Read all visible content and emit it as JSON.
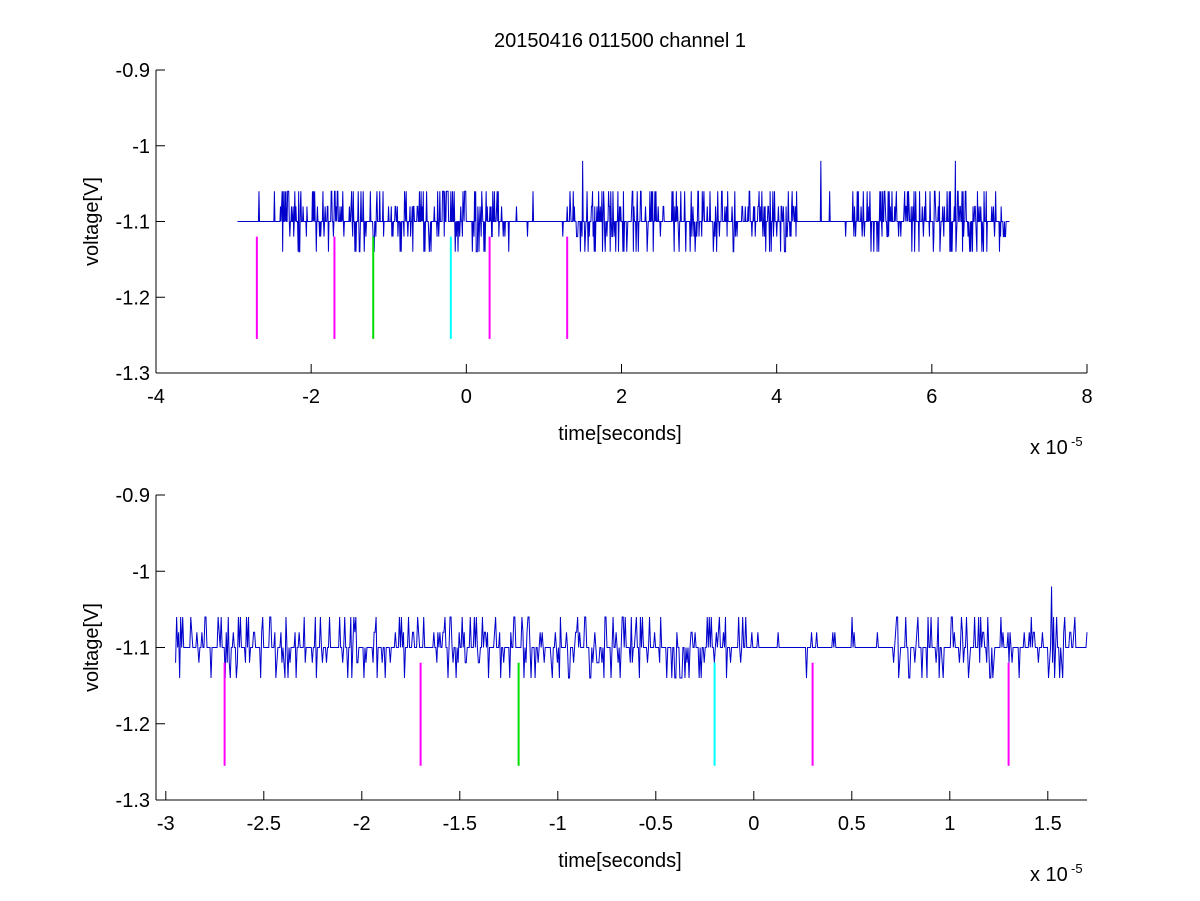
{
  "figure": {
    "title": "20150416 011500 channel 1"
  },
  "chart_data": [
    {
      "type": "line",
      "title": "20150416 011500 channel 1",
      "xlabel": "time[seconds]",
      "ylabel": "voltage[V]",
      "x_exponent_label": "x 10",
      "x_exponent_power": "-5",
      "xlim": [
        -4,
        8
      ],
      "ylim": [
        -1.3,
        -0.9
      ],
      "xticks": [
        -4,
        -2,
        0,
        2,
        4,
        6,
        8
      ],
      "xtick_labels": [
        "-4",
        "-2",
        "0",
        "2",
        "4",
        "6",
        "8"
      ],
      "yticks": [
        -0.9,
        -1,
        -1.1,
        -1.2,
        -1.3
      ],
      "ytick_labels": [
        "-0.9",
        "-1",
        "-1.1",
        "-1.2",
        "-1.3"
      ],
      "grid": false,
      "signal": {
        "color": "#0000cc",
        "x_start": -2.95,
        "x_end": 7.0,
        "baseline": -1.1,
        "levels": [
          -1.14,
          -1.12,
          -1.1,
          -1.08,
          -1.06
        ],
        "peaks": [
          {
            "x": 1.5,
            "y": -1.02
          },
          {
            "x": 4.57,
            "y": -1.02
          },
          {
            "x": 6.3,
            "y": -1.02
          }
        ]
      },
      "markers": [
        {
          "x": -2.7,
          "y_top": -1.12,
          "y_bottom": -1.255,
          "color": "#ff00ff"
        },
        {
          "x": -1.7,
          "y_top": -1.12,
          "y_bottom": -1.255,
          "color": "#ff00ff"
        },
        {
          "x": -1.2,
          "y_top": -1.12,
          "y_bottom": -1.255,
          "color": "#00dd00"
        },
        {
          "x": -0.2,
          "y_top": -1.12,
          "y_bottom": -1.255,
          "color": "#00ffff"
        },
        {
          "x": 0.3,
          "y_top": -1.12,
          "y_bottom": -1.255,
          "color": "#ff00ff"
        },
        {
          "x": 1.3,
          "y_top": -1.12,
          "y_bottom": -1.255,
          "color": "#ff00ff"
        }
      ]
    },
    {
      "type": "line",
      "title": "",
      "xlabel": "time[seconds]",
      "ylabel": "voltage[V]",
      "x_exponent_label": "x 10",
      "x_exponent_power": "-5",
      "xlim": [
        -3.05,
        1.7
      ],
      "ylim": [
        -1.3,
        -0.9
      ],
      "xticks": [
        -3,
        -2.5,
        -2,
        -1.5,
        -1,
        -0.5,
        0,
        0.5,
        1,
        1.5
      ],
      "xtick_labels": [
        "-3",
        "-2.5",
        "-2",
        "-1.5",
        "-1",
        "-0.5",
        "0",
        "0.5",
        "1",
        "1.5"
      ],
      "yticks": [
        -0.9,
        -1,
        -1.1,
        -1.2,
        -1.3
      ],
      "ytick_labels": [
        "-0.9",
        "-1",
        "-1.1",
        "-1.2",
        "-1.3"
      ],
      "grid": false,
      "signal": {
        "color": "#0000cc",
        "x_start": -2.95,
        "x_end": 1.7,
        "baseline": -1.1,
        "levels": [
          -1.14,
          -1.12,
          -1.1,
          -1.08,
          -1.06
        ],
        "peaks": [
          {
            "x": 1.52,
            "y": -1.02
          }
        ]
      },
      "markers": [
        {
          "x": -2.7,
          "y_top": -1.12,
          "y_bottom": -1.255,
          "color": "#ff00ff"
        },
        {
          "x": -1.7,
          "y_top": -1.12,
          "y_bottom": -1.255,
          "color": "#ff00ff"
        },
        {
          "x": -1.2,
          "y_top": -1.12,
          "y_bottom": -1.255,
          "color": "#00dd00"
        },
        {
          "x": -0.2,
          "y_top": -1.12,
          "y_bottom": -1.255,
          "color": "#00ffff"
        },
        {
          "x": 0.3,
          "y_top": -1.12,
          "y_bottom": -1.255,
          "color": "#ff00ff"
        },
        {
          "x": 1.3,
          "y_top": -1.12,
          "y_bottom": -1.255,
          "color": "#ff00ff"
        }
      ]
    }
  ]
}
